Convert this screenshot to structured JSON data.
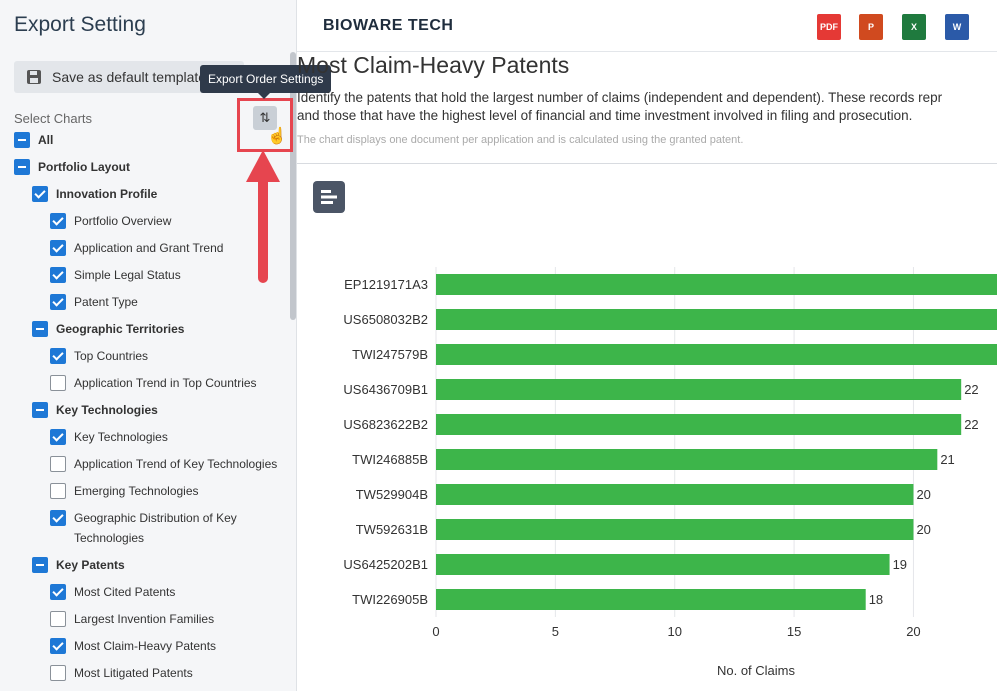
{
  "sidebar": {
    "title": "Export Setting",
    "save_label": "Save as default template",
    "select_label": "Select Charts",
    "tooltip": "Export Order Settings",
    "tree": [
      {
        "label": "All",
        "level": 0,
        "state": "part",
        "bold": true
      },
      {
        "label": "Portfolio Layout",
        "level": 0,
        "state": "part",
        "bold": true
      },
      {
        "label": "Innovation Profile",
        "level": 1,
        "state": "on",
        "bold": true
      },
      {
        "label": "Portfolio Overview",
        "level": 2,
        "state": "on"
      },
      {
        "label": "Application and Grant Trend",
        "level": 2,
        "state": "on"
      },
      {
        "label": "Simple Legal Status",
        "level": 2,
        "state": "on"
      },
      {
        "label": "Patent Type",
        "level": 2,
        "state": "on"
      },
      {
        "label": "Geographic Territories",
        "level": 1,
        "state": "part",
        "bold": true
      },
      {
        "label": "Top Countries",
        "level": 2,
        "state": "on"
      },
      {
        "label": "Application Trend in Top Countries",
        "level": 2,
        "state": "off"
      },
      {
        "label": "Key Technologies",
        "level": 1,
        "state": "part",
        "bold": true
      },
      {
        "label": "Key Technologies",
        "level": 2,
        "state": "on"
      },
      {
        "label": "Application Trend of Key Technologies",
        "level": 2,
        "state": "off"
      },
      {
        "label": "Emerging Technologies",
        "level": 2,
        "state": "off"
      },
      {
        "label": "Geographic Distribution of Key Technologies",
        "level": 2,
        "state": "on"
      },
      {
        "label": "Key Patents",
        "level": 1,
        "state": "part",
        "bold": true
      },
      {
        "label": "Most Cited Patents",
        "level": 2,
        "state": "on"
      },
      {
        "label": "Largest Invention Families",
        "level": 2,
        "state": "off"
      },
      {
        "label": "Most Claim-Heavy Patents",
        "level": 2,
        "state": "on"
      },
      {
        "label": "Most Litigated Patents",
        "level": 2,
        "state": "off"
      }
    ]
  },
  "header": {
    "brand": "BIOWARE TECH",
    "formats": [
      {
        "name": "pdf-icon",
        "label": "PDF",
        "color": "#e53935"
      },
      {
        "name": "powerpoint-icon",
        "label": "P",
        "color": "#d04a1f"
      },
      {
        "name": "excel-icon",
        "label": "X",
        "color": "#1f7a3e"
      },
      {
        "name": "word-icon",
        "label": "W",
        "color": "#2b5aa8"
      }
    ]
  },
  "main": {
    "title": "Most Claim-Heavy Patents",
    "desc_line1": "Identify the patents that hold the largest number of claims (independent and dependent). These records repr",
    "desc_line2": "and those that have the highest level of financial and time investment involved in filing and prosecution.",
    "note": "The chart displays one document per application and is calculated using the granted patent."
  },
  "chart_data": {
    "type": "bar",
    "orientation": "horizontal",
    "categories": [
      "EP1219171A3",
      "US6508032B2",
      "TWI247579B",
      "US6436709B1",
      "US6823622B2",
      "TWI246885B",
      "TW529904B",
      "TW592631B",
      "US6425202B1",
      "TWI226905B"
    ],
    "values": [
      24,
      24,
      24,
      22,
      22,
      21,
      20,
      20,
      19,
      18
    ],
    "data_labels": [
      "",
      "",
      "",
      "22",
      "22",
      "21",
      "20",
      "20",
      "19",
      "18"
    ],
    "xlabel": "No. of Claims",
    "xticks": [
      0,
      5,
      10,
      15,
      20
    ],
    "xlim": [
      0,
      23.5
    ],
    "bar_color": "#3db54a",
    "grid": true
  }
}
